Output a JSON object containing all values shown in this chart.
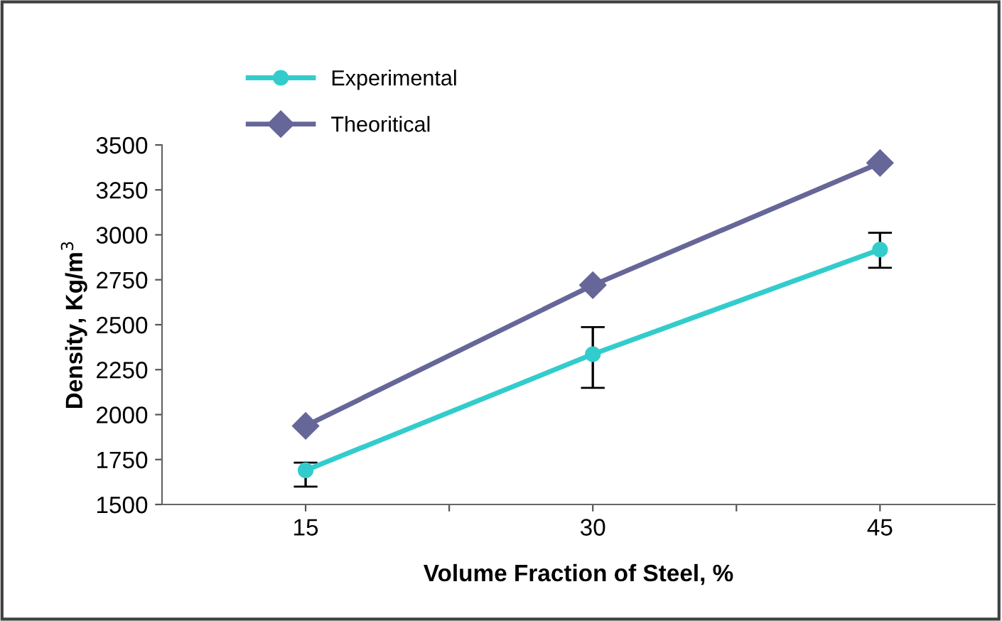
{
  "chart_data": {
    "type": "line",
    "xlabel": "Volume Fraction of Steel, %",
    "ylabel": "Density, Kg/m$^{3}$",
    "x": [
      15,
      30,
      45
    ],
    "series": [
      {
        "name": "Experimental",
        "color": "#33cccc",
        "values": [
          1690,
          2336,
          2918
        ],
        "errors": [
          [
            1599,
            1733
          ],
          [
            2149,
            2487
          ],
          [
            2817,
            3011
          ]
        ],
        "marker": "circle"
      },
      {
        "name": "Theoritical",
        "color": "#666699",
        "values": [
          1937,
          2720,
          3400
        ],
        "marker": "diamond"
      }
    ],
    "xlim": [
      7.5,
      51
    ],
    "xticks": [
      {
        "value": 15,
        "label": "15"
      },
      {
        "value": 22.5,
        "label": null
      },
      {
        "value": 30,
        "label": "30"
      },
      {
        "value": 37.5,
        "label": null
      },
      {
        "value": 45,
        "label": "45"
      }
    ],
    "ylim": [
      1500,
      3500
    ],
    "yticks": [
      1500,
      1750,
      2000,
      2250,
      2500,
      2750,
      3000,
      3250,
      3500
    ],
    "grid": false,
    "legend": "top left",
    "line_style": "solid"
  }
}
